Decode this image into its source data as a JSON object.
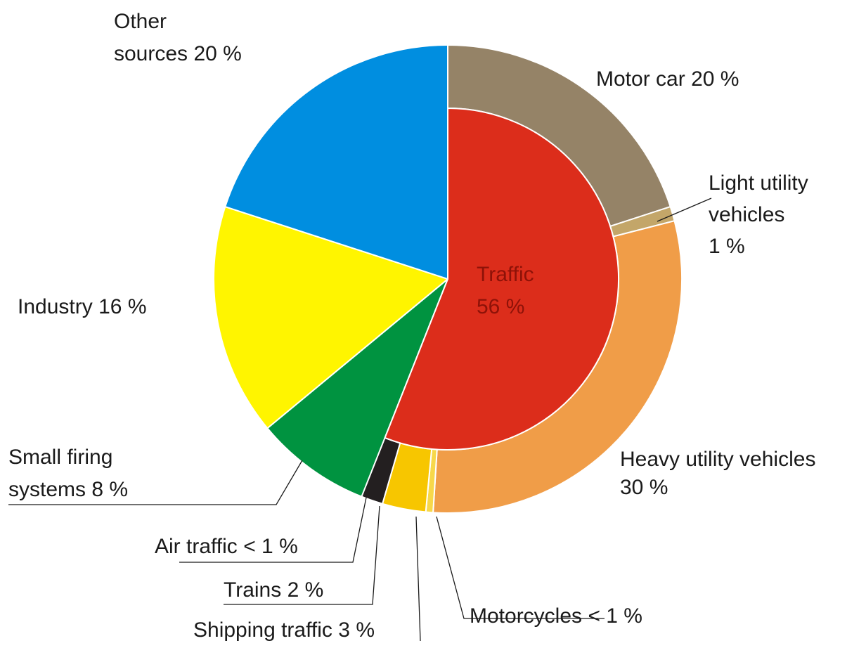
{
  "chart_data": {
    "type": "pie",
    "categories": [
      "Traffic",
      "Small firing\nsystems",
      "Industry",
      "Other\nsources"
    ],
    "values": [
      56,
      8,
      16,
      20
    ],
    "value_labels": [
      "56 %",
      "8 %",
      "16 %",
      "20 %"
    ],
    "colors": [
      "#dc2d1b",
      "#009340",
      "#fff500",
      "#008ee0"
    ],
    "breakdown": {
      "categories": [
        "Motor car",
        "Light utility\nvehicles",
        "Heavy utility vehicles",
        "Motorcycles",
        "Shipping traffic",
        "Trains",
        "Air traffic"
      ],
      "values": [
        20,
        1,
        30,
        0.5,
        3,
        2,
        0.5
      ],
      "value_labels": [
        "20 %",
        "1 %",
        "30 %",
        "< 1 %",
        "3 %",
        "2 %",
        "< 1 %"
      ],
      "colors": [
        "#958367",
        "#c3a669",
        "#f09d48",
        "#f7d84a",
        "#f7c600",
        "#231f20",
        "#cfcfcf"
      ]
    }
  }
}
